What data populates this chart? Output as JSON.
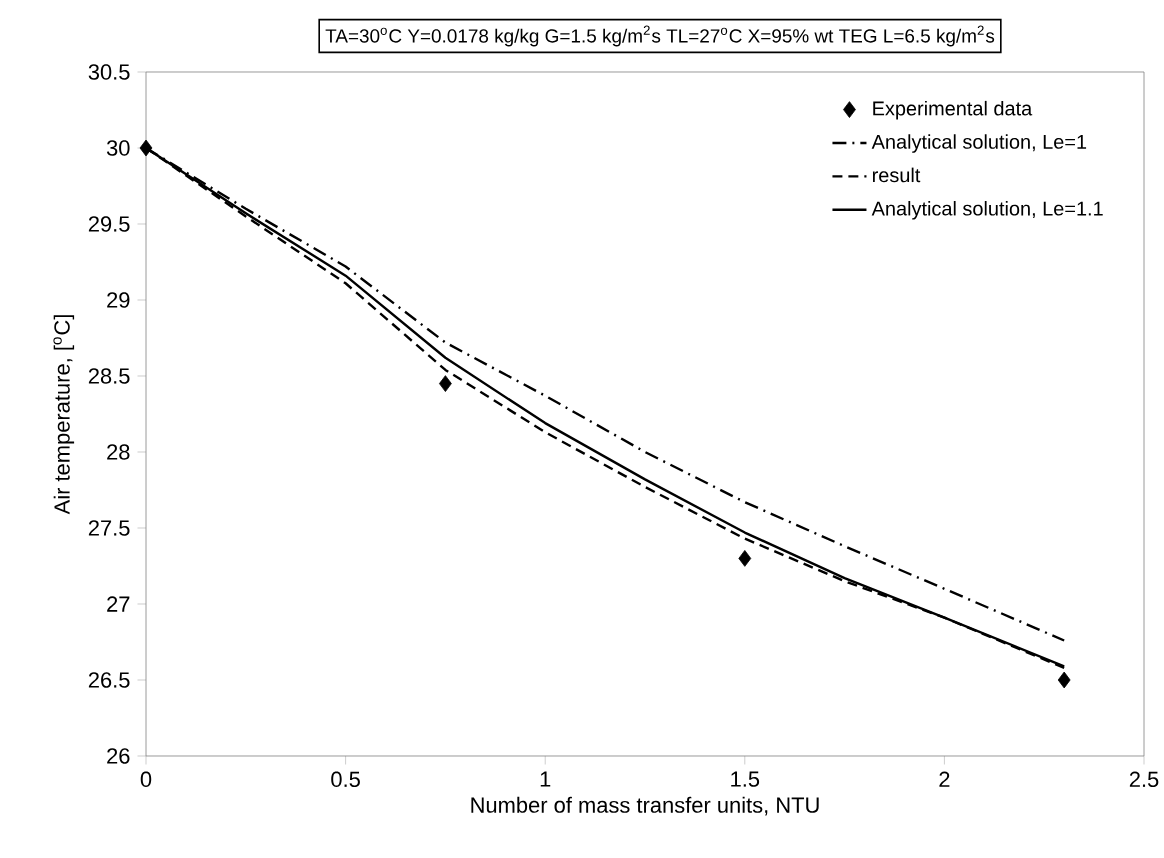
{
  "chart_data": {
    "type": "line",
    "title": "TA=30$^{o}$C Y=0.0178 kg/kg G=1.5 kg/m$^{2}$s TL=27$^{o}$C X=95% wt TEG L=6.5 kg/m$^{2}$s",
    "xlabel": "Number of mass transfer units, NTU",
    "ylabel": "Air temperature, [$^{o}$C]",
    "xlim": [
      0,
      2.5
    ],
    "ylim": [
      26,
      30.5
    ],
    "xticks": [
      0,
      0.5,
      1,
      1.5,
      2,
      2.5
    ],
    "yticks": [
      26,
      26.5,
      27,
      27.5,
      28,
      28.5,
      29,
      29.5,
      30,
      30.5
    ],
    "grid": false,
    "legend": "top right",
    "series": [
      {
        "name": "Experimental data",
        "type": "scatter",
        "marker": "diamond",
        "color": "#000000",
        "x": [
          0,
          0.75,
          1.5,
          2.3
        ],
        "values": [
          30,
          28.45,
          27.3,
          26.5
        ]
      },
      {
        "name": "Analytical solution, Le=1",
        "line_style": "dashdot",
        "color": "#000000",
        "x": [
          0,
          0.25,
          0.5,
          0.75,
          1,
          1.25,
          1.5,
          1.75,
          2,
          2.3
        ],
        "values": [
          30,
          29.6,
          29.22,
          28.72,
          28.37,
          28.0,
          27.67,
          27.38,
          27.1,
          26.76
        ]
      },
      {
        "name": "result",
        "line_style": "dashed",
        "color": "#000000",
        "x": [
          0,
          0.25,
          0.5,
          0.75,
          1,
          1.25,
          1.5,
          1.75,
          2,
          2.3
        ],
        "values": [
          30,
          29.55,
          29.11,
          28.54,
          28.13,
          27.77,
          27.43,
          27.15,
          26.91,
          26.58
        ]
      },
      {
        "name": "Analytical solution, Le=1.1",
        "line_style": "solid",
        "color": "#000000",
        "x": [
          0,
          0.25,
          0.5,
          0.75,
          1,
          1.25,
          1.5,
          1.75,
          2,
          2.3
        ],
        "values": [
          30,
          29.57,
          29.16,
          28.62,
          28.19,
          27.82,
          27.47,
          27.17,
          26.91,
          26.59
        ]
      }
    ]
  }
}
